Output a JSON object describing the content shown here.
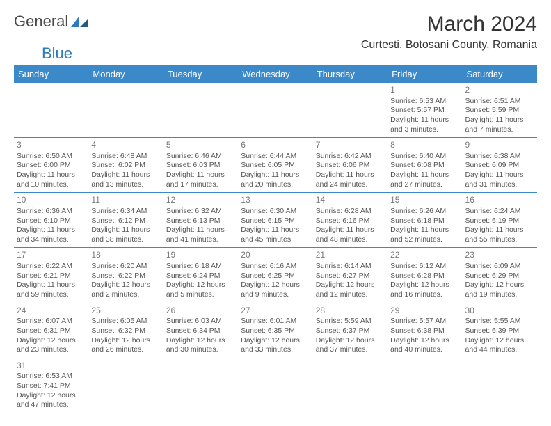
{
  "logo": {
    "text1": "General",
    "text2": "Blue"
  },
  "title": "March 2024",
  "location": "Curtesti, Botosani County, Romania",
  "headers": [
    "Sunday",
    "Monday",
    "Tuesday",
    "Wednesday",
    "Thursday",
    "Friday",
    "Saturday"
  ],
  "style": {
    "header_bg": "#3b89c9",
    "header_fg": "#ffffff",
    "row_border": "#3b89c9",
    "body_text": "#555555",
    "daynum_color": "#777777",
    "title_fontsize": 30,
    "location_fontsize": 16,
    "header_fontsize": 13,
    "cell_fontsize": 10.5,
    "background": "#ffffff",
    "logo_color_1": "#4a4a4a",
    "logo_color_2": "#2b7bbf"
  },
  "weeks": [
    [
      null,
      null,
      null,
      null,
      null,
      {
        "d": "1",
        "sr": "6:53 AM",
        "ss": "5:57 PM",
        "dl": "11 hours and 3 minutes."
      },
      {
        "d": "2",
        "sr": "6:51 AM",
        "ss": "5:59 PM",
        "dl": "11 hours and 7 minutes."
      }
    ],
    [
      {
        "d": "3",
        "sr": "6:50 AM",
        "ss": "6:00 PM",
        "dl": "11 hours and 10 minutes."
      },
      {
        "d": "4",
        "sr": "6:48 AM",
        "ss": "6:02 PM",
        "dl": "11 hours and 13 minutes."
      },
      {
        "d": "5",
        "sr": "6:46 AM",
        "ss": "6:03 PM",
        "dl": "11 hours and 17 minutes."
      },
      {
        "d": "6",
        "sr": "6:44 AM",
        "ss": "6:05 PM",
        "dl": "11 hours and 20 minutes."
      },
      {
        "d": "7",
        "sr": "6:42 AM",
        "ss": "6:06 PM",
        "dl": "11 hours and 24 minutes."
      },
      {
        "d": "8",
        "sr": "6:40 AM",
        "ss": "6:08 PM",
        "dl": "11 hours and 27 minutes."
      },
      {
        "d": "9",
        "sr": "6:38 AM",
        "ss": "6:09 PM",
        "dl": "11 hours and 31 minutes."
      }
    ],
    [
      {
        "d": "10",
        "sr": "6:36 AM",
        "ss": "6:10 PM",
        "dl": "11 hours and 34 minutes."
      },
      {
        "d": "11",
        "sr": "6:34 AM",
        "ss": "6:12 PM",
        "dl": "11 hours and 38 minutes."
      },
      {
        "d": "12",
        "sr": "6:32 AM",
        "ss": "6:13 PM",
        "dl": "11 hours and 41 minutes."
      },
      {
        "d": "13",
        "sr": "6:30 AM",
        "ss": "6:15 PM",
        "dl": "11 hours and 45 minutes."
      },
      {
        "d": "14",
        "sr": "6:28 AM",
        "ss": "6:16 PM",
        "dl": "11 hours and 48 minutes."
      },
      {
        "d": "15",
        "sr": "6:26 AM",
        "ss": "6:18 PM",
        "dl": "11 hours and 52 minutes."
      },
      {
        "d": "16",
        "sr": "6:24 AM",
        "ss": "6:19 PM",
        "dl": "11 hours and 55 minutes."
      }
    ],
    [
      {
        "d": "17",
        "sr": "6:22 AM",
        "ss": "6:21 PM",
        "dl": "11 hours and 59 minutes."
      },
      {
        "d": "18",
        "sr": "6:20 AM",
        "ss": "6:22 PM",
        "dl": "12 hours and 2 minutes."
      },
      {
        "d": "19",
        "sr": "6:18 AM",
        "ss": "6:24 PM",
        "dl": "12 hours and 5 minutes."
      },
      {
        "d": "20",
        "sr": "6:16 AM",
        "ss": "6:25 PM",
        "dl": "12 hours and 9 minutes."
      },
      {
        "d": "21",
        "sr": "6:14 AM",
        "ss": "6:27 PM",
        "dl": "12 hours and 12 minutes."
      },
      {
        "d": "22",
        "sr": "6:12 AM",
        "ss": "6:28 PM",
        "dl": "12 hours and 16 minutes."
      },
      {
        "d": "23",
        "sr": "6:09 AM",
        "ss": "6:29 PM",
        "dl": "12 hours and 19 minutes."
      }
    ],
    [
      {
        "d": "24",
        "sr": "6:07 AM",
        "ss": "6:31 PM",
        "dl": "12 hours and 23 minutes."
      },
      {
        "d": "25",
        "sr": "6:05 AM",
        "ss": "6:32 PM",
        "dl": "12 hours and 26 minutes."
      },
      {
        "d": "26",
        "sr": "6:03 AM",
        "ss": "6:34 PM",
        "dl": "12 hours and 30 minutes."
      },
      {
        "d": "27",
        "sr": "6:01 AM",
        "ss": "6:35 PM",
        "dl": "12 hours and 33 minutes."
      },
      {
        "d": "28",
        "sr": "5:59 AM",
        "ss": "6:37 PM",
        "dl": "12 hours and 37 minutes."
      },
      {
        "d": "29",
        "sr": "5:57 AM",
        "ss": "6:38 PM",
        "dl": "12 hours and 40 minutes."
      },
      {
        "d": "30",
        "sr": "5:55 AM",
        "ss": "6:39 PM",
        "dl": "12 hours and 44 minutes."
      }
    ],
    [
      {
        "d": "31",
        "sr": "6:53 AM",
        "ss": "7:41 PM",
        "dl": "12 hours and 47 minutes."
      },
      null,
      null,
      null,
      null,
      null,
      null
    ]
  ],
  "labels": {
    "sunrise": "Sunrise: ",
    "sunset": "Sunset: ",
    "daylight": "Daylight: "
  }
}
